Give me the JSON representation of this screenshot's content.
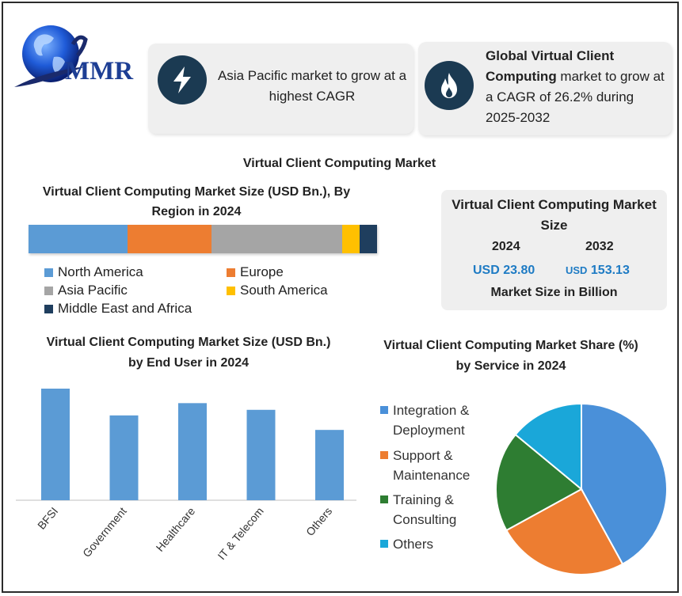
{
  "brand": {
    "logo_text": "MMR"
  },
  "cards": {
    "card1": {
      "icon": "lightning-icon",
      "text": "Asia Pacific market to grow at a highest CAGR"
    },
    "card2": {
      "icon": "flame-icon",
      "text_bold": "Global Virtual Client Computing",
      "text_rest": " market to grow at a CAGR of 26.2% during 2025-2032"
    }
  },
  "main_title": "Virtual Client Computing Market",
  "market_size": {
    "title": "Virtual Client Computing Market Size",
    "year_a": "2024",
    "year_b": "2032",
    "value_a": "USD 23.80",
    "value_b_prefix": "USD",
    "value_b_number": "153.13",
    "footer": "Market Size in Billion"
  },
  "colors": {
    "blue": "#5b9bd5",
    "orange": "#ed7d31",
    "gray": "#a5a5a5",
    "yellow": "#ffc000",
    "navy": "#1f3e5e",
    "pie_blue": "#4a90d9",
    "pie_orange": "#ed7d31",
    "pie_green": "#2e7d32",
    "pie_cyan": "#1aa7d9",
    "icon_bg": "#1b3a52"
  },
  "chart_data": [
    {
      "type": "bar",
      "orientation": "horizontal-stacked",
      "title": "Virtual Client Computing Market Size (USD Bn.), By Region in 2024",
      "categories": [
        "North America",
        "Europe",
        "Asia Pacific",
        "South America",
        "Middle East and Africa"
      ],
      "values": [
        28.5,
        24,
        37.5,
        5,
        5
      ],
      "unit": "percent of total (estimated)"
    },
    {
      "type": "bar",
      "title": "Virtual Client Computing  Market Size (USD Bn.) by End User in 2024",
      "categories": [
        "BFSI",
        "Government",
        "Healthcare",
        "IT & Telecom",
        "Others"
      ],
      "values": [
        100,
        76,
        87,
        81,
        63
      ],
      "ylim": [
        0,
        100
      ],
      "xlabel": "",
      "ylabel": "",
      "note": "relative values, no axis shown"
    },
    {
      "type": "pie",
      "title": "Virtual Client Computing  Market Share (%) by Service in 2024",
      "categories": [
        "Integration & Deployment",
        "Support & Maintenance",
        "Training & Consulting",
        "Others"
      ],
      "values": [
        42,
        25,
        19,
        14
      ]
    }
  ]
}
